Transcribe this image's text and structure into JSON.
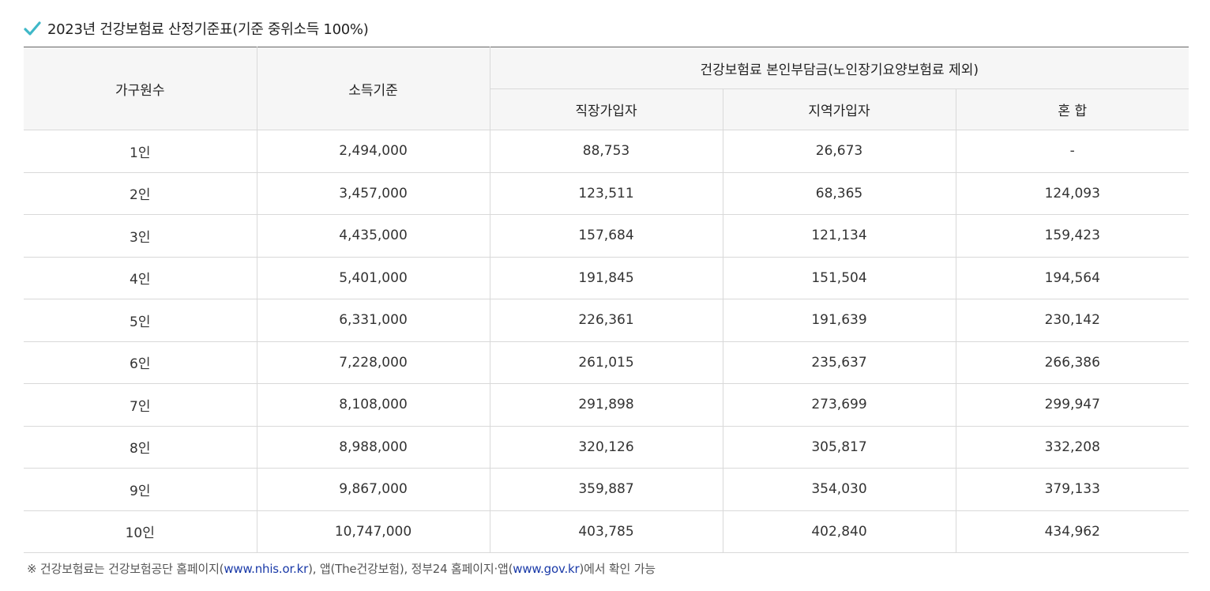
{
  "title": {
    "icon": "check-icon",
    "text": "2023년 건강보험료 산정기준표(기준 중위소득 100%)",
    "icon_color": "#3fb8c8"
  },
  "table": {
    "headers": {
      "household": "가구원수",
      "income": "소득기준",
      "premium_group": "건강보험료 본인부담금(노인장기요양보험료 제외)",
      "employee": "직장가입자",
      "regional": "지역가입자",
      "mixed": "혼 합"
    },
    "rows": [
      {
        "household": "1인",
        "income": "2,494,000",
        "employee": "88,753",
        "regional": "26,673",
        "mixed": "-"
      },
      {
        "household": "2인",
        "income": "3,457,000",
        "employee": "123,511",
        "regional": "68,365",
        "mixed": "124,093"
      },
      {
        "household": "3인",
        "income": "4,435,000",
        "employee": "157,684",
        "regional": "121,134",
        "mixed": "159,423"
      },
      {
        "household": "4인",
        "income": "5,401,000",
        "employee": "191,845",
        "regional": "151,504",
        "mixed": "194,564"
      },
      {
        "household": "5인",
        "income": "6,331,000",
        "employee": "226,361",
        "regional": "191,639",
        "mixed": "230,142"
      },
      {
        "household": "6인",
        "income": "7,228,000",
        "employee": "261,015",
        "regional": "235,637",
        "mixed": "266,386"
      },
      {
        "household": "7인",
        "income": "8,108,000",
        "employee": "291,898",
        "regional": "273,699",
        "mixed": "299,947"
      },
      {
        "household": "8인",
        "income": "8,988,000",
        "employee": "320,126",
        "regional": "305,817",
        "mixed": "332,208"
      },
      {
        "household": "9인",
        "income": "9,867,000",
        "employee": "359,887",
        "regional": "354,030",
        "mixed": "379,133"
      },
      {
        "household": "10인",
        "income": "10,747,000",
        "employee": "403,785",
        "regional": "402,840",
        "mixed": "434,962"
      }
    ]
  },
  "note": {
    "prefix": "※ 건강보험료는 건강보험공단 홈페이지(",
    "link1": "www.nhis.or.kr",
    "middle": "), 앱(The건강보험), 정부24 홈페이지·앱(",
    "link2": "www.gov.kr",
    "suffix": ")에서 확인 가능",
    "link_color": "#1a3aa8"
  }
}
